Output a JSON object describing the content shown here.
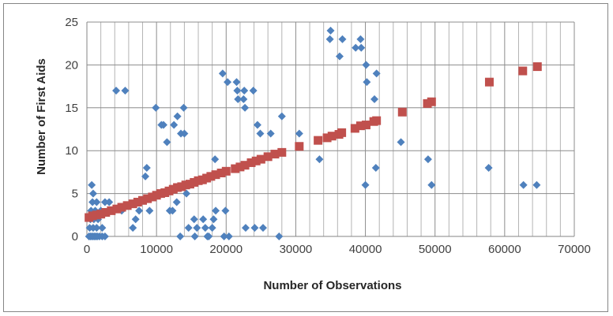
{
  "chart_data": {
    "type": "scatter",
    "title": "",
    "xlabel": "Number of Observations",
    "ylabel": "Number of First Aids",
    "xlim": [
      0,
      70000
    ],
    "ylim": [
      0,
      25
    ],
    "xticks": [
      0,
      10000,
      20000,
      30000,
      40000,
      50000,
      60000,
      70000
    ],
    "yticks": [
      0,
      5,
      10,
      15,
      20,
      25
    ],
    "xtick_labels": [
      "0",
      "10000",
      "20000",
      "30000",
      "40000",
      "50000",
      "60000",
      "70000"
    ],
    "ytick_labels": [
      "0",
      "5",
      "10",
      "15",
      "20",
      "25"
    ],
    "grid": true,
    "legend": "none",
    "series": [
      {
        "marker": "diamond",
        "color": "#4f81bd",
        "points": [
          [
            300,
            0
          ],
          [
            500,
            0
          ],
          [
            700,
            0
          ],
          [
            900,
            0
          ],
          [
            1100,
            0
          ],
          [
            1300,
            0
          ],
          [
            1500,
            0
          ],
          [
            1800,
            0
          ],
          [
            2200,
            0
          ],
          [
            2600,
            0
          ],
          [
            400,
            1
          ],
          [
            900,
            1
          ],
          [
            1400,
            1
          ],
          [
            2200,
            1
          ],
          [
            500,
            2
          ],
          [
            1000,
            2
          ],
          [
            1600,
            2
          ],
          [
            600,
            3
          ],
          [
            1200,
            3
          ],
          [
            2000,
            3
          ],
          [
            800,
            4
          ],
          [
            1400,
            4
          ],
          [
            2600,
            4
          ],
          [
            3200,
            4
          ],
          [
            900,
            5
          ],
          [
            700,
            6
          ],
          [
            4200,
            17
          ],
          [
            5500,
            17
          ],
          [
            5000,
            3
          ],
          [
            6600,
            1
          ],
          [
            7000,
            2
          ],
          [
            7500,
            3
          ],
          [
            8400,
            7
          ],
          [
            8600,
            8
          ],
          [
            9000,
            3
          ],
          [
            9900,
            15
          ],
          [
            10700,
            13
          ],
          [
            11000,
            13
          ],
          [
            11500,
            11
          ],
          [
            11900,
            3
          ],
          [
            12300,
            3
          ],
          [
            12500,
            13
          ],
          [
            12900,
            4
          ],
          [
            13000,
            14
          ],
          [
            13400,
            0
          ],
          [
            13500,
            12
          ],
          [
            13900,
            15
          ],
          [
            14000,
            12
          ],
          [
            14300,
            5
          ],
          [
            14600,
            1
          ],
          [
            15400,
            2
          ],
          [
            15500,
            0
          ],
          [
            15800,
            1
          ],
          [
            16700,
            2
          ],
          [
            17000,
            1
          ],
          [
            17300,
            0
          ],
          [
            17500,
            0
          ],
          [
            18000,
            1
          ],
          [
            18200,
            2
          ],
          [
            18400,
            9
          ],
          [
            18500,
            3
          ],
          [
            19500,
            19
          ],
          [
            19700,
            0
          ],
          [
            19900,
            3
          ],
          [
            20200,
            18
          ],
          [
            20400,
            0
          ],
          [
            21500,
            18
          ],
          [
            21600,
            17
          ],
          [
            21700,
            16
          ],
          [
            22500,
            16
          ],
          [
            22600,
            17
          ],
          [
            22700,
            15
          ],
          [
            22800,
            1
          ],
          [
            23900,
            17
          ],
          [
            24100,
            1
          ],
          [
            24500,
            13
          ],
          [
            24900,
            12
          ],
          [
            25300,
            1
          ],
          [
            26400,
            12
          ],
          [
            27600,
            0
          ],
          [
            28000,
            14
          ],
          [
            30500,
            12
          ],
          [
            33400,
            9
          ],
          [
            34900,
            23
          ],
          [
            35000,
            24
          ],
          [
            36300,
            21
          ],
          [
            36700,
            23
          ],
          [
            38600,
            22
          ],
          [
            39300,
            23
          ],
          [
            39400,
            22
          ],
          [
            40000,
            6
          ],
          [
            40100,
            20
          ],
          [
            40200,
            18
          ],
          [
            41300,
            16
          ],
          [
            41500,
            8
          ],
          [
            41600,
            19
          ],
          [
            45100,
            11
          ],
          [
            49000,
            9
          ],
          [
            49500,
            6
          ],
          [
            57700,
            8
          ],
          [
            62700,
            6
          ],
          [
            64600,
            6
          ]
        ]
      },
      {
        "marker": "square",
        "color": "#c0504d",
        "points": [
          [
            300,
            2.2
          ],
          [
            800,
            2.4
          ],
          [
            1400,
            2.5
          ],
          [
            2000,
            2.6
          ],
          [
            2700,
            2.8
          ],
          [
            3500,
            3.0
          ],
          [
            4300,
            3.2
          ],
          [
            5000,
            3.4
          ],
          [
            5800,
            3.6
          ],
          [
            6600,
            3.8
          ],
          [
            7300,
            4.0
          ],
          [
            8000,
            4.2
          ],
          [
            8700,
            4.4
          ],
          [
            9400,
            4.6
          ],
          [
            10000,
            4.8
          ],
          [
            10600,
            5.0
          ],
          [
            11200,
            5.1
          ],
          [
            11800,
            5.3
          ],
          [
            12400,
            5.5
          ],
          [
            13000,
            5.7
          ],
          [
            13600,
            5.8
          ],
          [
            14200,
            6.0
          ],
          [
            14800,
            6.1
          ],
          [
            15400,
            6.3
          ],
          [
            16000,
            6.5
          ],
          [
            16600,
            6.6
          ],
          [
            17200,
            6.8
          ],
          [
            17800,
            7.0
          ],
          [
            18500,
            7.2
          ],
          [
            19300,
            7.4
          ],
          [
            20000,
            7.6
          ],
          [
            21300,
            7.9
          ],
          [
            22000,
            8.1
          ],
          [
            22700,
            8.3
          ],
          [
            23600,
            8.6
          ],
          [
            24300,
            8.8
          ],
          [
            25000,
            9.0
          ],
          [
            26000,
            9.3
          ],
          [
            27000,
            9.6
          ],
          [
            28000,
            9.8
          ],
          [
            30500,
            10.5
          ],
          [
            33200,
            11.2
          ],
          [
            34500,
            11.5
          ],
          [
            35200,
            11.7
          ],
          [
            36200,
            11.9
          ],
          [
            36600,
            12.1
          ],
          [
            38500,
            12.6
          ],
          [
            39300,
            12.9
          ],
          [
            40100,
            13.0
          ],
          [
            41200,
            13.4
          ],
          [
            41600,
            13.5
          ],
          [
            45300,
            14.5
          ],
          [
            48900,
            15.5
          ],
          [
            49500,
            15.7
          ],
          [
            57800,
            18.0
          ],
          [
            62600,
            19.3
          ],
          [
            64700,
            19.8
          ]
        ]
      }
    ]
  }
}
